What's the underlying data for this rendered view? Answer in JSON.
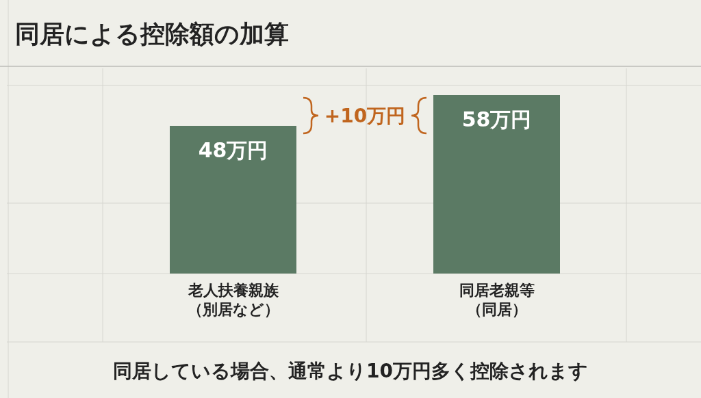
{
  "chart_data": {
    "type": "bar",
    "title": "同居による控除額の加算",
    "categories": [
      "老人扶養親族（別居など）",
      "同居老親等（同居）"
    ],
    "values": [
      48,
      58
    ],
    "color": "#5b7a64",
    "value_labels": [
      "48万円",
      "58万円"
    ],
    "grid": true,
    "annotations": [
      "+10万円",
      "同居している場合、通常より10万円多く控除されます"
    ]
  }
}
